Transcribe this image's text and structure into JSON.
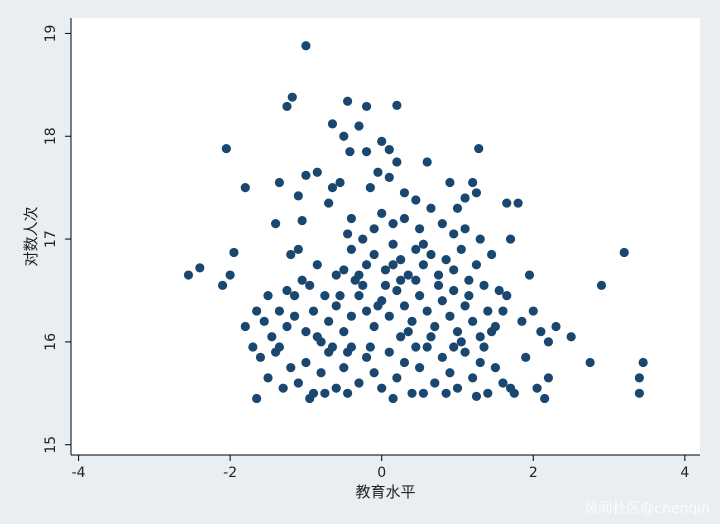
{
  "chart_data": {
    "type": "scatter",
    "title": "",
    "xlabel": "教育水平",
    "ylabel": "对数人次",
    "xlim": [
      -4.1,
      4.2
    ],
    "ylim": [
      14.9,
      19.15
    ],
    "x_ticks": [
      "-4",
      "-2",
      "0",
      "2",
      "4"
    ],
    "x_tick_values": [
      -4,
      -2,
      0,
      2,
      4
    ],
    "y_ticks": [
      "15",
      "16",
      "17",
      "18",
      "19"
    ],
    "y_tick_values": [
      15,
      16,
      17,
      18,
      19
    ],
    "grid": false,
    "marker_color": "#1a476f",
    "points": [
      [
        -1.0,
        18.88
      ],
      [
        -1.18,
        18.38
      ],
      [
        -1.25,
        18.29
      ],
      [
        -0.45,
        18.34
      ],
      [
        -0.2,
        18.29
      ],
      [
        0.2,
        18.3
      ],
      [
        -0.65,
        18.12
      ],
      [
        -0.5,
        18.0
      ],
      [
        -0.3,
        18.1
      ],
      [
        -0.42,
        17.85
      ],
      [
        -0.2,
        17.85
      ],
      [
        0.0,
        17.95
      ],
      [
        0.1,
        17.87
      ],
      [
        1.28,
        17.88
      ],
      [
        -2.05,
        17.88
      ],
      [
        -0.85,
        17.65
      ],
      [
        -1.0,
        17.62
      ],
      [
        -1.1,
        17.42
      ],
      [
        -1.35,
        17.55
      ],
      [
        -0.65,
        17.5
      ],
      [
        -0.55,
        17.55
      ],
      [
        -0.15,
        17.5
      ],
      [
        -0.05,
        17.65
      ],
      [
        0.1,
        17.6
      ],
      [
        0.2,
        17.75
      ],
      [
        0.6,
        17.75
      ],
      [
        0.3,
        17.45
      ],
      [
        0.45,
        17.38
      ],
      [
        0.9,
        17.55
      ],
      [
        1.2,
        17.55
      ],
      [
        1.25,
        17.45
      ],
      [
        1.65,
        17.35
      ],
      [
        1.8,
        17.35
      ],
      [
        1.0,
        17.3
      ],
      [
        1.1,
        17.4
      ],
      [
        -1.8,
        17.5
      ],
      [
        -1.4,
        17.15
      ],
      [
        -1.05,
        17.18
      ],
      [
        -0.7,
        17.35
      ],
      [
        -0.4,
        17.2
      ],
      [
        -0.45,
        17.05
      ],
      [
        -0.25,
        17.0
      ],
      [
        -0.1,
        17.1
      ],
      [
        0.0,
        17.25
      ],
      [
        0.15,
        17.15
      ],
      [
        0.3,
        17.2
      ],
      [
        0.5,
        17.1
      ],
      [
        0.65,
        17.3
      ],
      [
        0.8,
        17.15
      ],
      [
        0.95,
        17.05
      ],
      [
        1.1,
        17.1
      ],
      [
        1.3,
        17.0
      ],
      [
        1.7,
        17.0
      ],
      [
        -2.0,
        16.65
      ],
      [
        -1.95,
        16.87
      ],
      [
        -2.1,
        16.55
      ],
      [
        -2.55,
        16.65
      ],
      [
        -2.4,
        16.72
      ],
      [
        -1.8,
        16.15
      ],
      [
        -1.65,
        16.3
      ],
      [
        -1.5,
        16.45
      ],
      [
        -1.35,
        16.3
      ],
      [
        -1.25,
        16.5
      ],
      [
        -1.2,
        16.85
      ],
      [
        -1.1,
        16.9
      ],
      [
        -1.05,
        16.6
      ],
      [
        -0.95,
        16.55
      ],
      [
        -0.85,
        16.75
      ],
      [
        -0.75,
        16.45
      ],
      [
        -0.6,
        16.65
      ],
      [
        -0.5,
        16.7
      ],
      [
        -0.4,
        16.9
      ],
      [
        -0.3,
        16.65
      ],
      [
        -0.2,
        16.75
      ],
      [
        -0.1,
        16.85
      ],
      [
        0.05,
        16.7
      ],
      [
        0.15,
        16.95
      ],
      [
        0.25,
        16.8
      ],
      [
        0.35,
        16.65
      ],
      [
        0.45,
        16.9
      ],
      [
        0.55,
        16.75
      ],
      [
        0.65,
        16.85
      ],
      [
        0.75,
        16.65
      ],
      [
        0.85,
        16.8
      ],
      [
        0.95,
        16.7
      ],
      [
        1.05,
        16.9
      ],
      [
        1.15,
        16.6
      ],
      [
        1.25,
        16.75
      ],
      [
        1.35,
        16.55
      ],
      [
        1.45,
        16.85
      ],
      [
        1.55,
        16.5
      ],
      [
        1.65,
        16.45
      ],
      [
        1.95,
        16.65
      ],
      [
        3.2,
        16.87
      ],
      [
        2.9,
        16.55
      ],
      [
        -1.55,
        16.2
      ],
      [
        -1.45,
        16.05
      ],
      [
        -1.35,
        15.95
      ],
      [
        -1.25,
        16.15
      ],
      [
        -1.15,
        16.25
      ],
      [
        -1.0,
        16.1
      ],
      [
        -0.9,
        16.3
      ],
      [
        -0.8,
        16.0
      ],
      [
        -0.7,
        16.2
      ],
      [
        -0.6,
        16.35
      ],
      [
        -0.5,
        16.1
      ],
      [
        -0.4,
        16.25
      ],
      [
        -0.3,
        16.45
      ],
      [
        -0.2,
        16.3
      ],
      [
        -0.1,
        16.15
      ],
      [
        0.0,
        16.4
      ],
      [
        0.1,
        16.25
      ],
      [
        0.2,
        16.5
      ],
      [
        0.3,
        16.35
      ],
      [
        0.4,
        16.2
      ],
      [
        0.5,
        16.45
      ],
      [
        0.6,
        16.3
      ],
      [
        0.7,
        16.15
      ],
      [
        0.8,
        16.4
      ],
      [
        0.9,
        16.25
      ],
      [
        1.0,
        16.1
      ],
      [
        1.1,
        16.35
      ],
      [
        1.2,
        16.2
      ],
      [
        1.3,
        16.05
      ],
      [
        1.4,
        16.3
      ],
      [
        1.5,
        16.15
      ],
      [
        1.6,
        16.3
      ],
      [
        2.0,
        16.3
      ],
      [
        2.1,
        16.1
      ],
      [
        2.2,
        16.0
      ],
      [
        2.3,
        16.15
      ],
      [
        2.5,
        16.05
      ],
      [
        -1.6,
        15.85
      ],
      [
        -1.5,
        15.65
      ],
      [
        -1.4,
        15.9
      ],
      [
        -1.3,
        15.55
      ],
      [
        -1.2,
        15.75
      ],
      [
        -1.1,
        15.6
      ],
      [
        -1.0,
        15.8
      ],
      [
        -0.9,
        15.5
      ],
      [
        -0.8,
        15.7
      ],
      [
        -0.7,
        15.9
      ],
      [
        -0.6,
        15.55
      ],
      [
        -0.5,
        15.75
      ],
      [
        -0.4,
        15.95
      ],
      [
        -0.3,
        15.6
      ],
      [
        -0.2,
        15.85
      ],
      [
        -0.1,
        15.7
      ],
      [
        0.0,
        15.55
      ],
      [
        0.1,
        15.9
      ],
      [
        0.2,
        15.65
      ],
      [
        0.3,
        15.8
      ],
      [
        0.4,
        15.5
      ],
      [
        0.5,
        15.75
      ],
      [
        0.6,
        15.95
      ],
      [
        0.7,
        15.6
      ],
      [
        0.8,
        15.85
      ],
      [
        0.9,
        15.7
      ],
      [
        1.0,
        15.55
      ],
      [
        1.1,
        15.9
      ],
      [
        1.2,
        15.65
      ],
      [
        1.3,
        15.8
      ],
      [
        1.4,
        15.5
      ],
      [
        1.5,
        15.75
      ],
      [
        1.6,
        15.6
      ],
      [
        1.75,
        15.5
      ],
      [
        1.9,
        15.85
      ],
      [
        2.05,
        15.55
      ],
      [
        2.2,
        15.65
      ],
      [
        2.75,
        15.8
      ],
      [
        3.45,
        15.8
      ],
      [
        3.4,
        15.65
      ],
      [
        3.4,
        15.5
      ],
      [
        -1.65,
        15.45
      ],
      [
        -0.95,
        15.45
      ],
      [
        -0.45,
        15.5
      ],
      [
        0.15,
        15.45
      ],
      [
        0.55,
        15.5
      ],
      [
        1.25,
        15.47
      ],
      [
        2.15,
        15.45
      ],
      [
        -1.7,
        15.95
      ],
      [
        -0.85,
        16.05
      ],
      [
        -0.35,
        16.6
      ],
      [
        0.05,
        16.55
      ],
      [
        0.35,
        16.1
      ],
      [
        0.75,
        16.55
      ],
      [
        1.15,
        16.45
      ],
      [
        0.95,
        15.95
      ],
      [
        -0.15,
        15.95
      ],
      [
        -0.65,
        15.95
      ],
      [
        0.25,
        16.05
      ],
      [
        1.05,
        16.0
      ],
      [
        0.45,
        16.6
      ],
      [
        -0.25,
        16.55
      ],
      [
        -0.55,
        16.45
      ],
      [
        0.65,
        16.05
      ],
      [
        1.35,
        15.95
      ],
      [
        1.85,
        16.2
      ],
      [
        -0.75,
        15.5
      ],
      [
        0.85,
        15.5
      ],
      [
        0.15,
        16.75
      ],
      [
        0.55,
        16.95
      ],
      [
        -0.05,
        16.35
      ],
      [
        0.95,
        16.5
      ],
      [
        -1.15,
        16.45
      ],
      [
        0.25,
        16.6
      ],
      [
        -0.45,
        15.9
      ],
      [
        0.45,
        15.95
      ],
      [
        1.45,
        16.1
      ],
      [
        1.7,
        15.55
      ]
    ]
  }
}
